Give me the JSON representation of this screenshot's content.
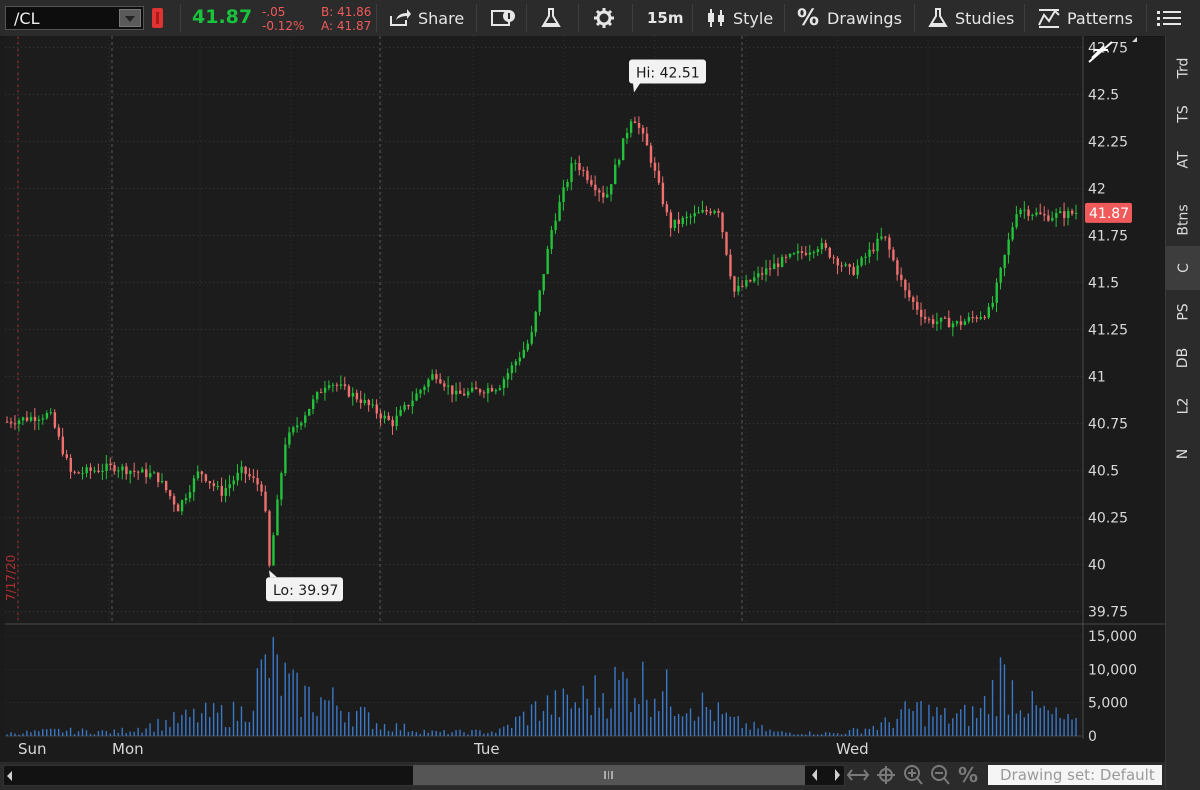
{
  "toolbar": {
    "symbol": "/CL",
    "last_price": "41.87",
    "net_change": "-.05",
    "pct_change": "-0.12%",
    "bid": "B: 41.86",
    "ask": "A: 41.87",
    "share_label": "Share",
    "aggregation": "15m",
    "style_label": "Style",
    "drawings_label": "Drawings",
    "studies_label": "Studies",
    "patterns_label": "Patterns"
  },
  "right_panel": {
    "items": [
      "Trd",
      "TS",
      "AT",
      "Btns",
      "C",
      "PS",
      "DB",
      "L2",
      "N"
    ]
  },
  "bottom_bar": {
    "drawing_set": "Drawing set: Default"
  },
  "colors": {
    "up": "#22c33a",
    "down": "#f07070",
    "volume": "#3a78c8",
    "last_tag": "#f05a5a",
    "background": "#1c1c1c"
  },
  "chart_data": {
    "type": "candlestick",
    "symbol": "/CL",
    "interval": "15m",
    "x_day_labels": [
      "Sun",
      "Mon",
      "Tue",
      "Wed"
    ],
    "date_marker": "7/17/20",
    "y_ticks": [
      "42.75",
      "42.5",
      "42.25",
      "42",
      "41.75",
      "41.5",
      "41.25",
      "41",
      "40.75",
      "40.5",
      "40.25",
      "40",
      "39.75"
    ],
    "ylim": [
      39.7,
      42.8
    ],
    "high": "Hi: 42.51",
    "low": "Lo: 39.97",
    "last_price_tag": "41.87",
    "close_path": [
      {
        "t": 0.0,
        "p": 40.76
      },
      {
        "t": 0.04,
        "p": 40.8
      },
      {
        "t": 0.06,
        "p": 40.48
      },
      {
        "t": 0.1,
        "p": 40.52
      },
      {
        "t": 0.14,
        "p": 40.47
      },
      {
        "t": 0.16,
        "p": 40.3
      },
      {
        "t": 0.18,
        "p": 40.5
      },
      {
        "t": 0.2,
        "p": 40.38
      },
      {
        "t": 0.22,
        "p": 40.5
      },
      {
        "t": 0.24,
        "p": 40.4
      },
      {
        "t": 0.245,
        "p": 39.97
      },
      {
        "t": 0.26,
        "p": 40.65
      },
      {
        "t": 0.3,
        "p": 40.98
      },
      {
        "t": 0.33,
        "p": 40.88
      },
      {
        "t": 0.36,
        "p": 40.75
      },
      {
        "t": 0.4,
        "p": 41.02
      },
      {
        "t": 0.42,
        "p": 40.9
      },
      {
        "t": 0.46,
        "p": 40.95
      },
      {
        "t": 0.49,
        "p": 41.2
      },
      {
        "t": 0.51,
        "p": 41.8
      },
      {
        "t": 0.53,
        "p": 42.15
      },
      {
        "t": 0.56,
        "p": 41.95
      },
      {
        "t": 0.585,
        "p": 42.4
      },
      {
        "t": 0.6,
        "p": 42.2
      },
      {
        "t": 0.62,
        "p": 41.8
      },
      {
        "t": 0.64,
        "p": 41.85
      },
      {
        "t": 0.665,
        "p": 41.9
      },
      {
        "t": 0.68,
        "p": 41.45
      },
      {
        "t": 0.72,
        "p": 41.6
      },
      {
        "t": 0.76,
        "p": 41.7
      },
      {
        "t": 0.79,
        "p": 41.55
      },
      {
        "t": 0.82,
        "p": 41.75
      },
      {
        "t": 0.84,
        "p": 41.45
      },
      {
        "t": 0.86,
        "p": 41.3
      },
      {
        "t": 0.89,
        "p": 41.28
      },
      {
        "t": 0.92,
        "p": 41.35
      },
      {
        "t": 0.945,
        "p": 41.9
      },
      {
        "t": 0.97,
        "p": 41.85
      },
      {
        "t": 1.0,
        "p": 41.87
      }
    ],
    "volume": {
      "y_ticks": [
        "15,000",
        "10,000",
        "5,000",
        "0"
      ],
      "ylim": [
        0,
        16500
      ],
      "profile": [
        {
          "t": 0.0,
          "v": 600
        },
        {
          "t": 0.05,
          "v": 1200
        },
        {
          "t": 0.1,
          "v": 900
        },
        {
          "t": 0.14,
          "v": 2500
        },
        {
          "t": 0.18,
          "v": 4500
        },
        {
          "t": 0.22,
          "v": 5000
        },
        {
          "t": 0.245,
          "v": 16000
        },
        {
          "t": 0.27,
          "v": 9000
        },
        {
          "t": 0.31,
          "v": 7000
        },
        {
          "t": 0.35,
          "v": 2500
        },
        {
          "t": 0.4,
          "v": 800
        },
        {
          "t": 0.46,
          "v": 1000
        },
        {
          "t": 0.5,
          "v": 6500
        },
        {
          "t": 0.53,
          "v": 7000
        },
        {
          "t": 0.57,
          "v": 11000
        },
        {
          "t": 0.59,
          "v": 12000
        },
        {
          "t": 0.62,
          "v": 9000
        },
        {
          "t": 0.64,
          "v": 8000
        },
        {
          "t": 0.68,
          "v": 3000
        },
        {
          "t": 0.72,
          "v": 800
        },
        {
          "t": 0.78,
          "v": 600
        },
        {
          "t": 0.82,
          "v": 2500
        },
        {
          "t": 0.85,
          "v": 6000
        },
        {
          "t": 0.88,
          "v": 4000
        },
        {
          "t": 0.91,
          "v": 5000
        },
        {
          "t": 0.93,
          "v": 13000
        },
        {
          "t": 0.96,
          "v": 6000
        },
        {
          "t": 1.0,
          "v": 2500
        }
      ]
    }
  }
}
